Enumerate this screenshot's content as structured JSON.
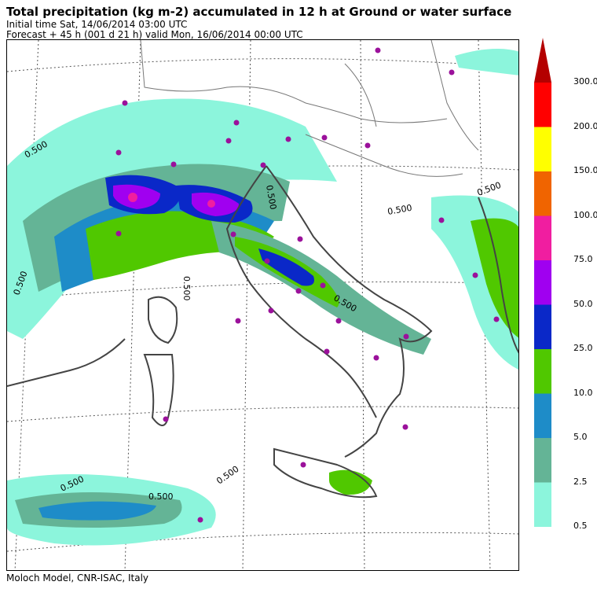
{
  "header": {
    "title": "Total precipitation (kg m-2) accumulated in  12 h at Ground or water surface",
    "initial_time": "Initial time  Sat, 14/06/2014  03:00 UTC",
    "forecast": "Forecast  +  45 h  (001 d 21 h)  valid Mon, 16/06/2014 00:00 UTC"
  },
  "footer": {
    "credit": "Moloch Model, CNR-ISAC, Italy"
  },
  "colorbar": {
    "levels": [
      {
        "label": "0.5",
        "color": "#8cf5dc"
      },
      {
        "label": "2.5",
        "color": "#64b496"
      },
      {
        "label": "5.0",
        "color": "#1e8cc8"
      },
      {
        "label": "10.0",
        "color": "#50c800"
      },
      {
        "label": "25.0",
        "color": "#0a28c8"
      },
      {
        "label": "50.0",
        "color": "#a000f0"
      },
      {
        "label": "75.0",
        "color": "#f01ea0"
      },
      {
        "label": "100.0",
        "color": "#f06400"
      },
      {
        "label": "150.0",
        "color": "#ffff00"
      },
      {
        "label": "200.0",
        "color": "#ff0000"
      },
      {
        "label": "300.0",
        "color": "#b40000"
      }
    ]
  },
  "map": {
    "contour_labels": [
      "0.500",
      "0.500",
      "0.500",
      "0.500",
      "0.500",
      "0.500",
      "0.500",
      "0.500",
      "0.500",
      "0.500"
    ],
    "city_marker_color": "#9b119b"
  }
}
